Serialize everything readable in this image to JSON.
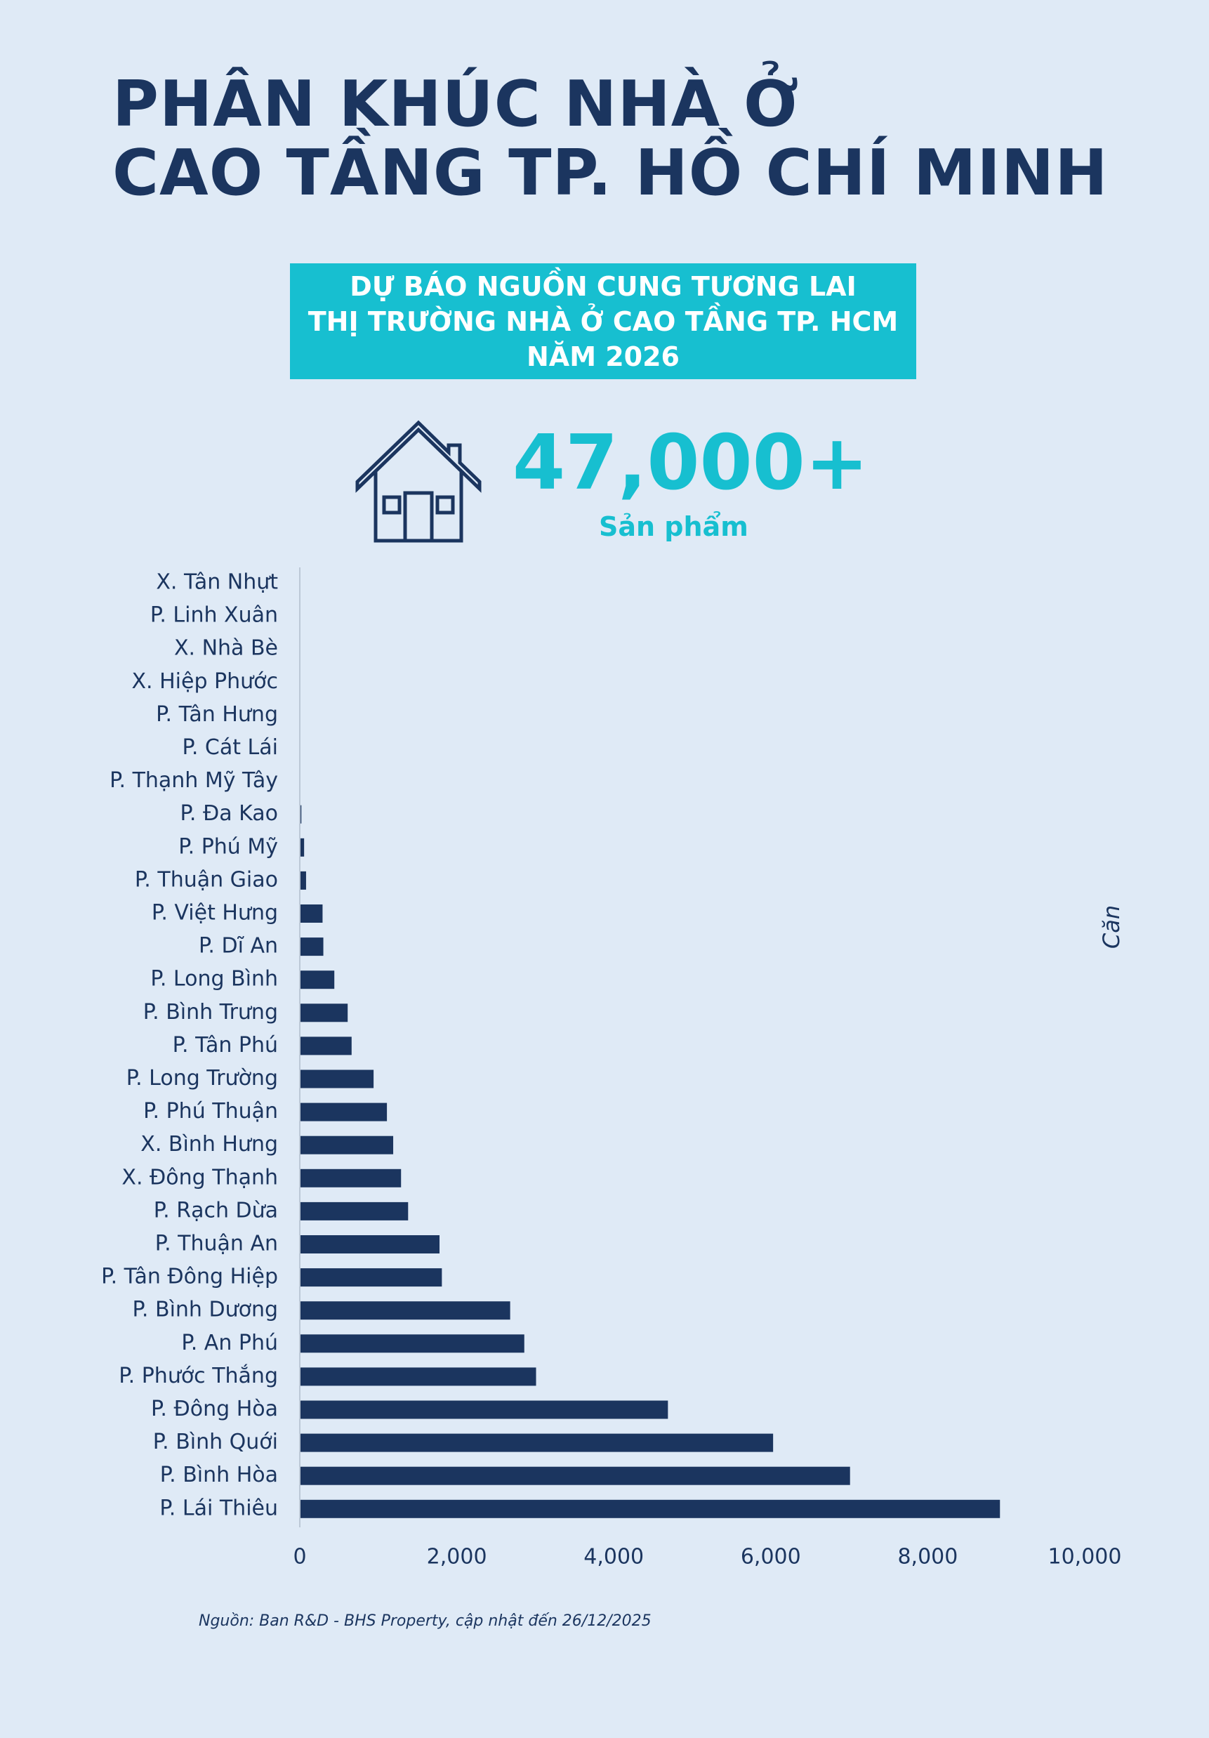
{
  "title": {
    "line1": "PHÂN KHÚC NHÀ Ở",
    "line2": "CAO TẦNG TP. HỒ CHÍ MINH"
  },
  "banner": {
    "line1": "DỰ BÁO NGUỒN CUNG TƯƠNG LAI",
    "line2": "THỊ TRƯỜNG NHÀ Ở CAO TẦNG TP. HCM",
    "line3": "NĂM 2026"
  },
  "highlight": {
    "icon": "house-icon",
    "value": "47,000+",
    "label": "Sản phẩm"
  },
  "source": "Nguồn: Ban R&D - BHS Property, cập nhật đến 26/12/2025",
  "colors": {
    "background": "#dfeaf6",
    "navy": "#1b355f",
    "accent": "#17bfd0",
    "bar": "#1b355f"
  },
  "chart_data": {
    "type": "bar",
    "orientation": "horizontal",
    "title": "",
    "xlabel": "",
    "ylabel": "Căn",
    "xlim": [
      0,
      10000
    ],
    "xticks": [
      0,
      2000,
      4000,
      6000,
      8000,
      10000
    ],
    "xtick_labels": [
      "0",
      "2,000",
      "4,000",
      "6,000",
      "8,000",
      "10,000"
    ],
    "grid": false,
    "categories": [
      "X. Tân Nhựt",
      "P. Linh Xuân",
      "X. Nhà Bè",
      "X. Hiệp Phước",
      "P. Tân Hưng",
      "P. Cát Lái",
      "P. Thạnh Mỹ Tây",
      "P. Đa Kao",
      "P. Phú Mỹ",
      "P. Thuận Giao",
      "P. Việt Hưng",
      "P. Dĩ An",
      "P. Long Bình",
      "P. Bình Trưng",
      "P. Tân Phú",
      "P. Long Trường",
      "P. Phú Thuận",
      "X. Bình Hưng",
      "X. Đông Thạnh",
      "P. Rạch Dừa",
      "P. Thuận An",
      "P. Tân Đông Hiệp",
      "P. Bình Dương",
      "P. An Phú",
      "P. Phước Thắng",
      "P. Đông Hòa",
      "P. Bình Quới",
      "P. Bình Hòa",
      "P. Lái Thiêu"
    ],
    "values": [
      0,
      0,
      0,
      0,
      0,
      0,
      0,
      20,
      55,
      80,
      290,
      300,
      440,
      610,
      660,
      940,
      1110,
      1190,
      1290,
      1380,
      1780,
      1810,
      2680,
      2860,
      3010,
      4690,
      6030,
      7010,
      8920
    ]
  }
}
